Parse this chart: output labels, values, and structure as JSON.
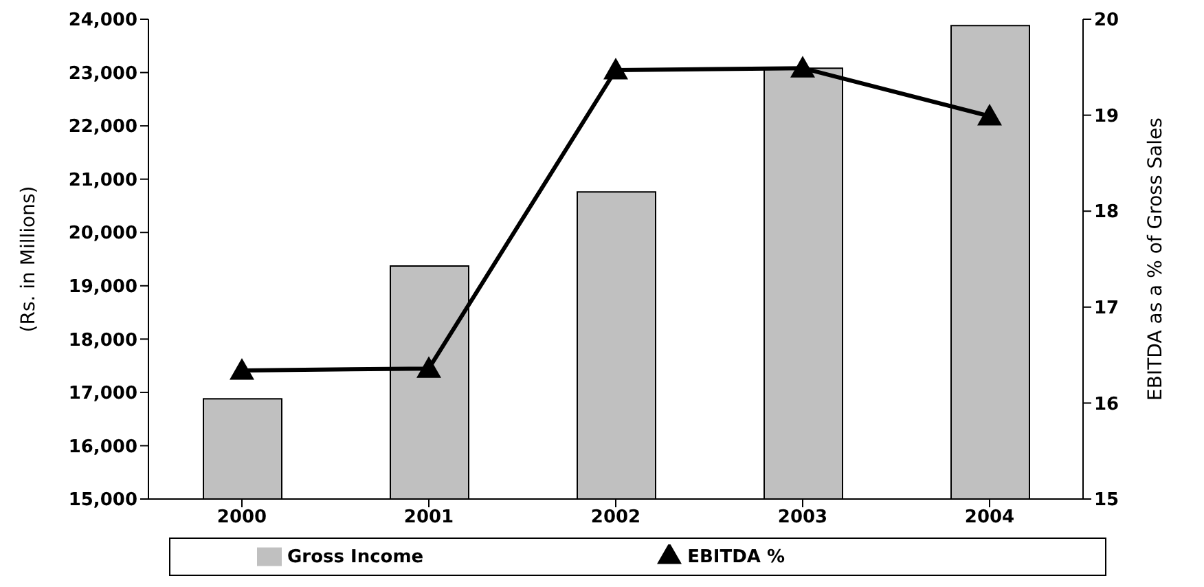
{
  "chart_data": {
    "type": "bar",
    "categories": [
      "2000",
      "2001",
      "2002",
      "2003",
      "2004"
    ],
    "series": [
      {
        "name": "Gross Income",
        "color": "#c0c0c0",
        "values": [
          16880,
          19370,
          20760,
          23080,
          23880
        ]
      },
      {
        "name": "EBITDA %",
        "type": "line",
        "axis": "y2",
        "color": "#000000",
        "marker": "triangle",
        "values": [
          16.34,
          16.36,
          19.47,
          19.49,
          18.99
        ]
      }
    ],
    "ylabel": "(Rs. in Millions)",
    "y2label": "EBITDA as a % of Gross Sales",
    "ylim": [
      15000,
      24000
    ],
    "yticks": [
      {
        "value": 15000,
        "label": "15,000"
      },
      {
        "value": 16000,
        "label": "16,000"
      },
      {
        "value": 17000,
        "label": "17,000"
      },
      {
        "value": 18000,
        "label": "18,000"
      },
      {
        "value": 19000,
        "label": "19,000"
      },
      {
        "value": 20000,
        "label": "20,000"
      },
      {
        "value": 21000,
        "label": "21,000"
      },
      {
        "value": 22000,
        "label": "22,000"
      },
      {
        "value": 23000,
        "label": "23,000"
      },
      {
        "value": 24000,
        "label": "24,000"
      }
    ],
    "y2lim": [
      15,
      20
    ],
    "y2ticks": [
      15,
      16,
      17,
      18,
      19,
      20
    ],
    "grid": false,
    "legend": "bottom"
  }
}
